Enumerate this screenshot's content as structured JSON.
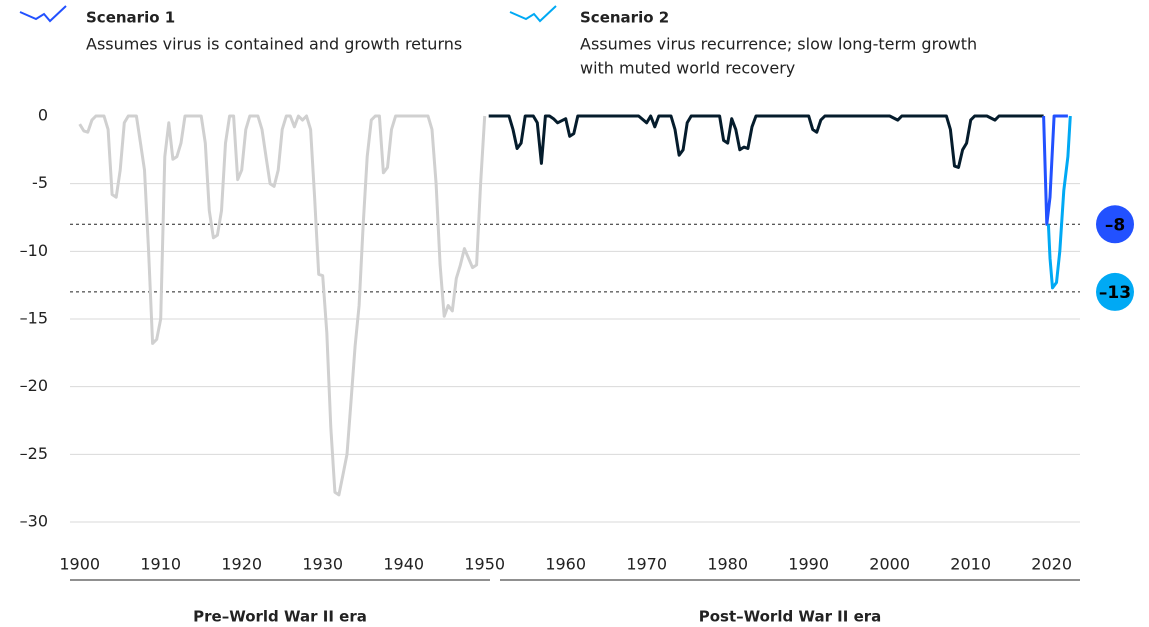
{
  "chart_data": {
    "type": "line",
    "xlim": [
      1898.8,
      2023.5
    ],
    "xticks": [
      1900,
      1910,
      1920,
      1930,
      1940,
      1950,
      1960,
      1970,
      1980,
      1990,
      2000,
      2010,
      2020
    ],
    "ylim": [
      -30,
      0
    ],
    "yticks": [
      0,
      -5,
      {
        "value": -10,
        "label": "–10"
      },
      {
        "value": -15,
        "label": "–15"
      },
      {
        "value": -20,
        "label": "–20"
      },
      {
        "value": -25,
        "label": "–25"
      },
      {
        "value": -30,
        "label": "–30"
      }
    ],
    "grid": true,
    "annotations": [
      {
        "value": -8,
        "label": "–8",
        "color": "#2251ff"
      },
      {
        "value": -13,
        "label": "–13",
        "color": "#00a9f4"
      }
    ],
    "series": [
      {
        "name": "Pre–World War II era",
        "color": "#d0d0d0",
        "x": [
          1900,
          1900.5,
          1901,
          1901.5,
          1902,
          1903,
          1903.5,
          1904,
          1904.5,
          1905,
          1905.5,
          1906,
          1907,
          1907.5,
          1908,
          1908.5,
          1909,
          1909.5,
          1910,
          1910.5,
          1911,
          1911.5,
          1912,
          1912.5,
          1913,
          1915,
          1915.5,
          1916,
          1916.5,
          1917,
          1917.5,
          1918,
          1918.5,
          1919,
          1919.5,
          1920,
          1920.5,
          1921,
          1922,
          1922.5,
          1923,
          1923.5,
          1924,
          1924.5,
          1925,
          1925.5,
          1926,
          1926.5,
          1927,
          1927.5,
          1928,
          1928.5,
          1929,
          1929.5,
          1930,
          1930.5,
          1931,
          1931.5,
          1932,
          1932.5,
          1933,
          1933.5,
          1934,
          1934.5,
          1935,
          1935.5,
          1936,
          1936.5,
          1937,
          1937.5,
          1938,
          1938.5,
          1939,
          1943,
          1943.5,
          1944,
          1944.5,
          1945,
          1945.5,
          1946,
          1946.5,
          1947,
          1947.5,
          1948,
          1948.5,
          1949,
          1949.5,
          1950
        ],
        "values": [
          -0.6,
          -1.1,
          -1.2,
          -0.3,
          0,
          0,
          -1,
          -5.8,
          -6,
          -4,
          -0.5,
          0,
          0,
          -2,
          -4,
          -10,
          -16.8,
          -16.5,
          -15,
          -3,
          -0.5,
          -3.2,
          -3,
          -2,
          0,
          0,
          -2,
          -7,
          -9,
          -8.8,
          -7,
          -2,
          0,
          0,
          -4.7,
          -4,
          -1,
          0,
          0,
          -1,
          -3,
          -5,
          -5.2,
          -4,
          -1,
          0,
          0,
          -0.8,
          0,
          -0.3,
          0,
          -1,
          -6,
          -11.7,
          -11.8,
          -16,
          -23,
          -27.8,
          -28,
          -26.5,
          -25,
          -21,
          -17,
          -14,
          -8,
          -3,
          -0.3,
          0,
          0,
          -4.2,
          -3.8,
          -1,
          0,
          0,
          -1,
          -5,
          -11,
          -14.8,
          -14,
          -14.4,
          -12,
          -11,
          -9.8,
          -10.5,
          -11.2,
          -11,
          -5,
          0
        ]
      },
      {
        "name": "Post–World War II era",
        "color": "#051c2c",
        "x": [
          1950.5,
          1953,
          1953.5,
          1954,
          1954.5,
          1955,
          1956,
          1956.5,
          1957,
          1957.5,
          1958,
          1958.5,
          1959,
          1960,
          1960.5,
          1961,
          1961.5,
          1969,
          1970,
          1970.5,
          1971,
          1971.5,
          1973,
          1973.5,
          1974,
          1974.5,
          1975,
          1975.5,
          1979,
          1979.5,
          1980,
          1980.5,
          1981,
          1981.5,
          1982,
          1982.5,
          1983,
          1983.5,
          1990,
          1990.5,
          1991,
          1991.5,
          1992,
          2000,
          2001,
          2001.5,
          2007,
          2007.5,
          2008,
          2008.5,
          2009,
          2009.5,
          2010,
          2010.5,
          2012,
          2013,
          2013.5,
          2019
        ],
        "values": [
          0,
          0,
          -1,
          -2.4,
          -2,
          0,
          0,
          -0.5,
          -3.5,
          0,
          0,
          -0.2,
          -0.5,
          -0.2,
          -1.5,
          -1.3,
          0,
          0,
          -0.5,
          0,
          -0.8,
          0,
          0,
          -1,
          -2.9,
          -2.5,
          -0.5,
          0,
          0,
          -1.8,
          -2,
          -0.2,
          -1,
          -2.5,
          -2.3,
          -2.4,
          -0.8,
          0,
          0,
          -1,
          -1.2,
          -0.3,
          0,
          0,
          -0.3,
          0,
          0,
          -1,
          -3.7,
          -3.8,
          -2.5,
          -2,
          -0.3,
          0,
          0,
          -0.3,
          0,
          0
        ]
      },
      {
        "name": "Scenario 1",
        "description": [
          "Assumes virus is contained and growth returns"
        ],
        "color": "#2251ff",
        "x": [
          2019,
          2019.4,
          2019.8,
          2020.3,
          2021,
          2022
        ],
        "values": [
          0,
          -8,
          -6,
          0,
          0,
          0
        ]
      },
      {
        "name": "Scenario 2",
        "description": [
          "Assumes virus recurrence; slow long-term growth",
          "with muted world recovery"
        ],
        "color": "#00a9f4",
        "x": [
          2019.6,
          2019.8,
          2020.1,
          2020.6,
          2021,
          2021.5,
          2022,
          2022.3
        ],
        "values": [
          -8,
          -10.5,
          -12.7,
          -12.3,
          -10,
          -5.5,
          -3,
          0
        ]
      }
    ]
  }
}
